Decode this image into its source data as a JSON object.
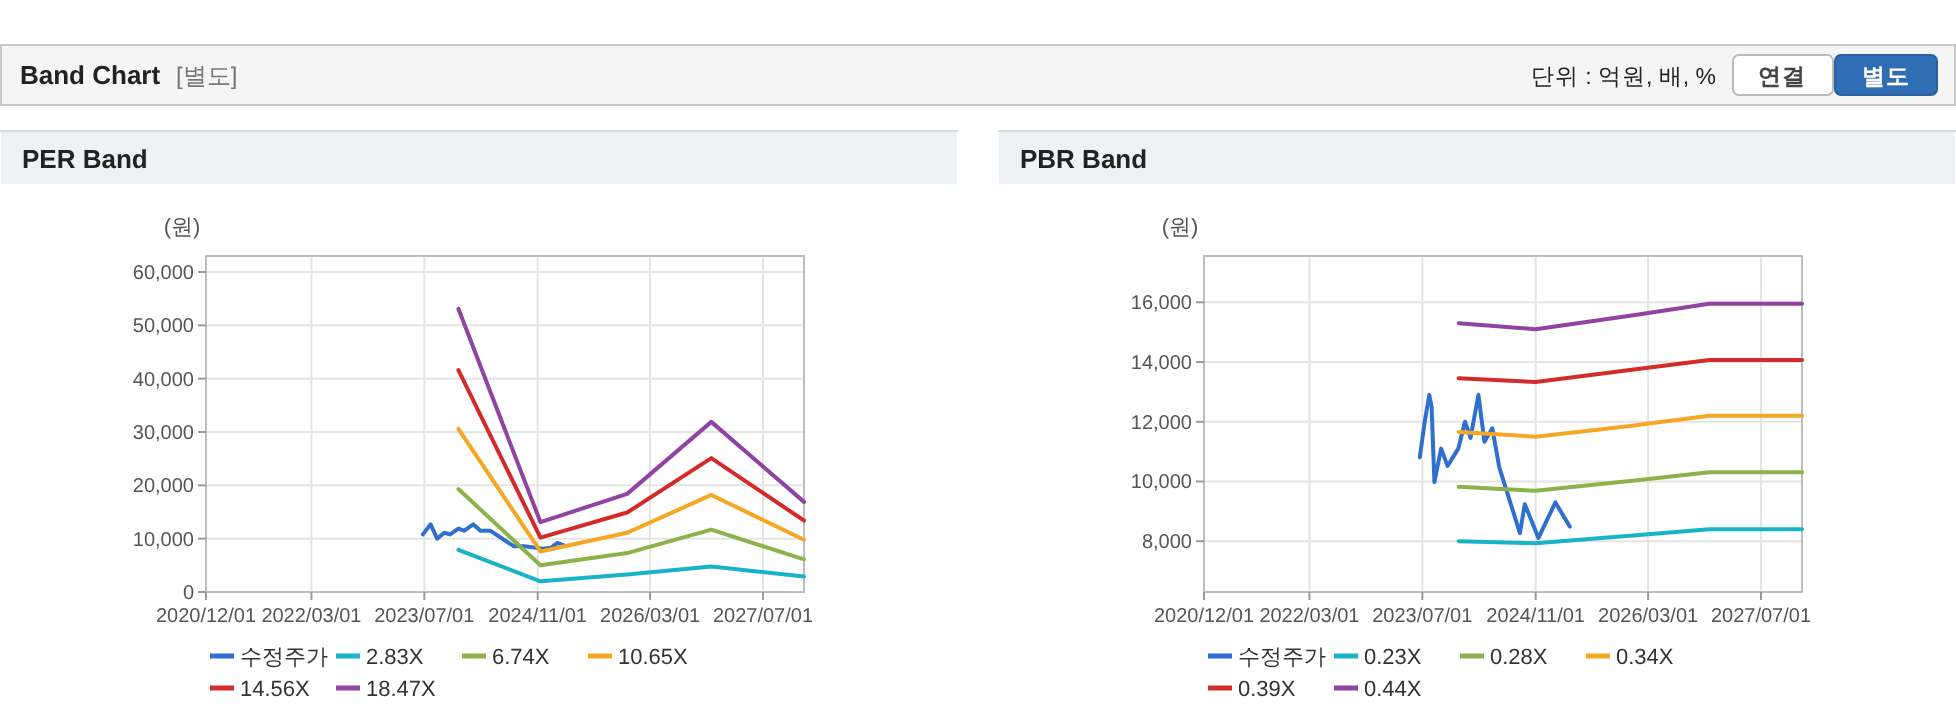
{
  "chart_data": [
    {
      "type": "other",
      "title": "Band Chart",
      "subtitle": "[별도]",
      "annotations": [
        "단위 : 억원, 배, %",
        "연결",
        "별도"
      ]
    },
    {
      "type": "line",
      "title": "PER Band",
      "ylabel": "(원)",
      "grid": true,
      "legend": "bottom",
      "marker": "none",
      "line_style": "solid",
      "xlim": [
        "2020-12-01",
        "2027-12-25"
      ],
      "xticks": [
        {
          "value": "2020-12-01",
          "label": "2020/12/01"
        },
        {
          "value": "2022-03-01",
          "label": "2022/03/01"
        },
        {
          "value": "2023-07-01",
          "label": "2023/07/01"
        },
        {
          "value": "2024-11-01",
          "label": "2024/11/01"
        },
        {
          "value": "2026-03-01",
          "label": "2026/03/01"
        },
        {
          "value": "2027-07-01",
          "label": "2027/07/01"
        }
      ],
      "ylim": [
        0,
        63000
      ],
      "yticks": [
        {
          "value": 0,
          "label": "0"
        },
        {
          "value": 10000,
          "label": "10,000"
        },
        {
          "value": 20000,
          "label": "20,000"
        },
        {
          "value": 30000,
          "label": "30,000"
        },
        {
          "value": 40000,
          "label": "40,000"
        },
        {
          "value": 50000,
          "label": "50,000"
        },
        {
          "value": 60000,
          "label": "60,000"
        }
      ],
      "series": [
        {
          "name": "수정주가",
          "color": "#2f6fcf",
          "x": [
            "2023-06-25",
            "2023-07-28",
            "2023-08-25",
            "2023-09-25",
            "2023-10-20",
            "2023-11-25",
            "2023-12-20",
            "2024-01-28",
            "2024-02-28",
            "2024-04-10",
            "2024-07-20",
            "2024-09-03",
            "2024-11-25",
            "2024-12-28",
            "2025-01-25",
            "2025-02-25"
          ],
          "values": [
            10800,
            12700,
            10000,
            11100,
            10800,
            11900,
            11500,
            12700,
            11500,
            11500,
            8600,
            8600,
            8100,
            8300,
            9200,
            8700
          ]
        },
        {
          "name": "2.83X",
          "color": "#17b3c8",
          "x": [
            "2023-11-25",
            "2024-11-13",
            "2025-11-22",
            "2026-11-20",
            "2027-12-25"
          ],
          "values": [
            7900,
            2000,
            3300,
            4800,
            2900
          ]
        },
        {
          "name": "6.74X",
          "color": "#8cb249",
          "x": [
            "2023-11-25",
            "2024-11-13",
            "2025-11-22",
            "2026-11-20",
            "2027-12-25"
          ],
          "values": [
            19300,
            5000,
            7300,
            11700,
            6100
          ]
        },
        {
          "name": "10.65X",
          "color": "#f5a623",
          "x": [
            "2023-11-25",
            "2024-11-13",
            "2025-11-22",
            "2026-11-20",
            "2027-12-25"
          ],
          "values": [
            30600,
            7600,
            11100,
            18200,
            9800
          ]
        },
        {
          "name": "14.56X",
          "color": "#d42a2a",
          "x": [
            "2023-11-25",
            "2024-11-13",
            "2025-11-22",
            "2026-11-20",
            "2027-12-25"
          ],
          "values": [
            41600,
            10200,
            14900,
            25100,
            13400
          ]
        },
        {
          "name": "18.47X",
          "color": "#8e44a0",
          "x": [
            "2023-11-25",
            "2024-11-13",
            "2025-11-22",
            "2026-11-20",
            "2027-12-25"
          ],
          "values": [
            53100,
            13100,
            18400,
            31900,
            16900
          ]
        }
      ]
    },
    {
      "type": "line",
      "title": "PBR Band",
      "ylabel": "(원)",
      "grid": true,
      "legend": "bottom",
      "marker": "none",
      "line_style": "solid",
      "xlim": [
        "2020-12-01",
        "2027-12-25"
      ],
      "xticks": [
        {
          "value": "2020-12-01",
          "label": "2020/12/01"
        },
        {
          "value": "2022-03-01",
          "label": "2022/03/01"
        },
        {
          "value": "2023-07-01",
          "label": "2023/07/01"
        },
        {
          "value": "2024-11-01",
          "label": "2024/11/01"
        },
        {
          "value": "2026-03-01",
          "label": "2026/03/01"
        },
        {
          "value": "2027-07-01",
          "label": "2027/07/01"
        }
      ],
      "ylim": [
        6300,
        17550
      ],
      "yticks": [
        {
          "value": 8000,
          "label": "8,000"
        },
        {
          "value": 10000,
          "label": "10,000"
        },
        {
          "value": 12000,
          "label": "12,000"
        },
        {
          "value": 14000,
          "label": "14,000"
        },
        {
          "value": 16000,
          "label": "16,000"
        }
      ],
      "series": [
        {
          "name": "수정주가",
          "color": "#2f6fcf",
          "x": [
            "2023-06-20",
            "2023-07-12",
            "2023-07-31",
            "2023-08-10",
            "2023-08-22",
            "2023-09-20",
            "2023-10-18",
            "2023-12-03",
            "2024-01-01",
            "2024-01-25",
            "2024-02-28",
            "2024-03-25",
            "2024-04-28",
            "2024-05-28",
            "2024-08-25",
            "2024-09-15",
            "2024-11-13",
            "2025-01-25",
            "2025-03-28"
          ],
          "values": [
            10810,
            12040,
            12900,
            12500,
            9980,
            11100,
            10520,
            11100,
            12000,
            11460,
            12900,
            11330,
            11780,
            10470,
            8270,
            9240,
            8110,
            9300,
            8490
          ]
        },
        {
          "name": "0.23X",
          "color": "#17b3c8",
          "x": [
            "2023-12-05",
            "2024-11-01",
            "2025-12-13",
            "2026-11-20",
            "2027-12-25"
          ],
          "values": [
            8000,
            7930,
            8180,
            8400,
            8400
          ]
        },
        {
          "name": "0.28X",
          "color": "#8cb249",
          "x": [
            "2023-12-05",
            "2024-11-01",
            "2025-12-13",
            "2026-11-20",
            "2027-12-25"
          ],
          "values": [
            9820,
            9690,
            10020,
            10310,
            10310
          ]
        },
        {
          "name": "0.34X",
          "color": "#f5a623",
          "x": [
            "2023-12-05",
            "2024-11-01",
            "2025-12-13",
            "2026-11-20",
            "2027-12-25"
          ],
          "values": [
            11660,
            11500,
            11860,
            12200,
            12200
          ]
        },
        {
          "name": "0.39X",
          "color": "#d42a2a",
          "x": [
            "2023-12-05",
            "2024-11-01",
            "2025-12-13",
            "2026-11-20",
            "2027-12-25"
          ],
          "values": [
            13460,
            13330,
            13730,
            14070,
            14070
          ]
        },
        {
          "name": "0.44X",
          "color": "#8e44a0",
          "x": [
            "2023-12-05",
            "2024-11-01",
            "2025-12-13",
            "2026-11-20",
            "2027-12-25"
          ],
          "values": [
            15300,
            15100,
            15550,
            15950,
            15950
          ]
        }
      ]
    }
  ]
}
